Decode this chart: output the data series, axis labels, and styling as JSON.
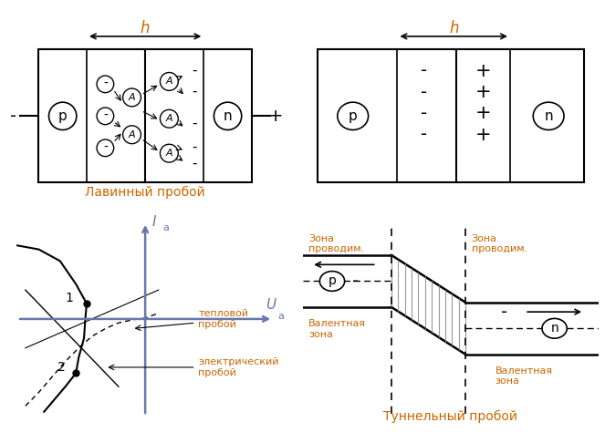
{
  "text_color": "#cc6600",
  "axis_color": "#6677aa",
  "bg_color": "#ffffff",
  "lavine_label": "Лавинный пробой",
  "tunnel_label": "Туннельный пробой",
  "label_zona_p": "Зона\nпроводим.",
  "label_zona_n": "Зона\nпроводим.",
  "label_valent_p": "Валентная\nзона",
  "label_valent_n": "Валентная\nзона",
  "label_teplovoy": "тепловой\nпробой",
  "label_elektr": "электрический\nпробой"
}
